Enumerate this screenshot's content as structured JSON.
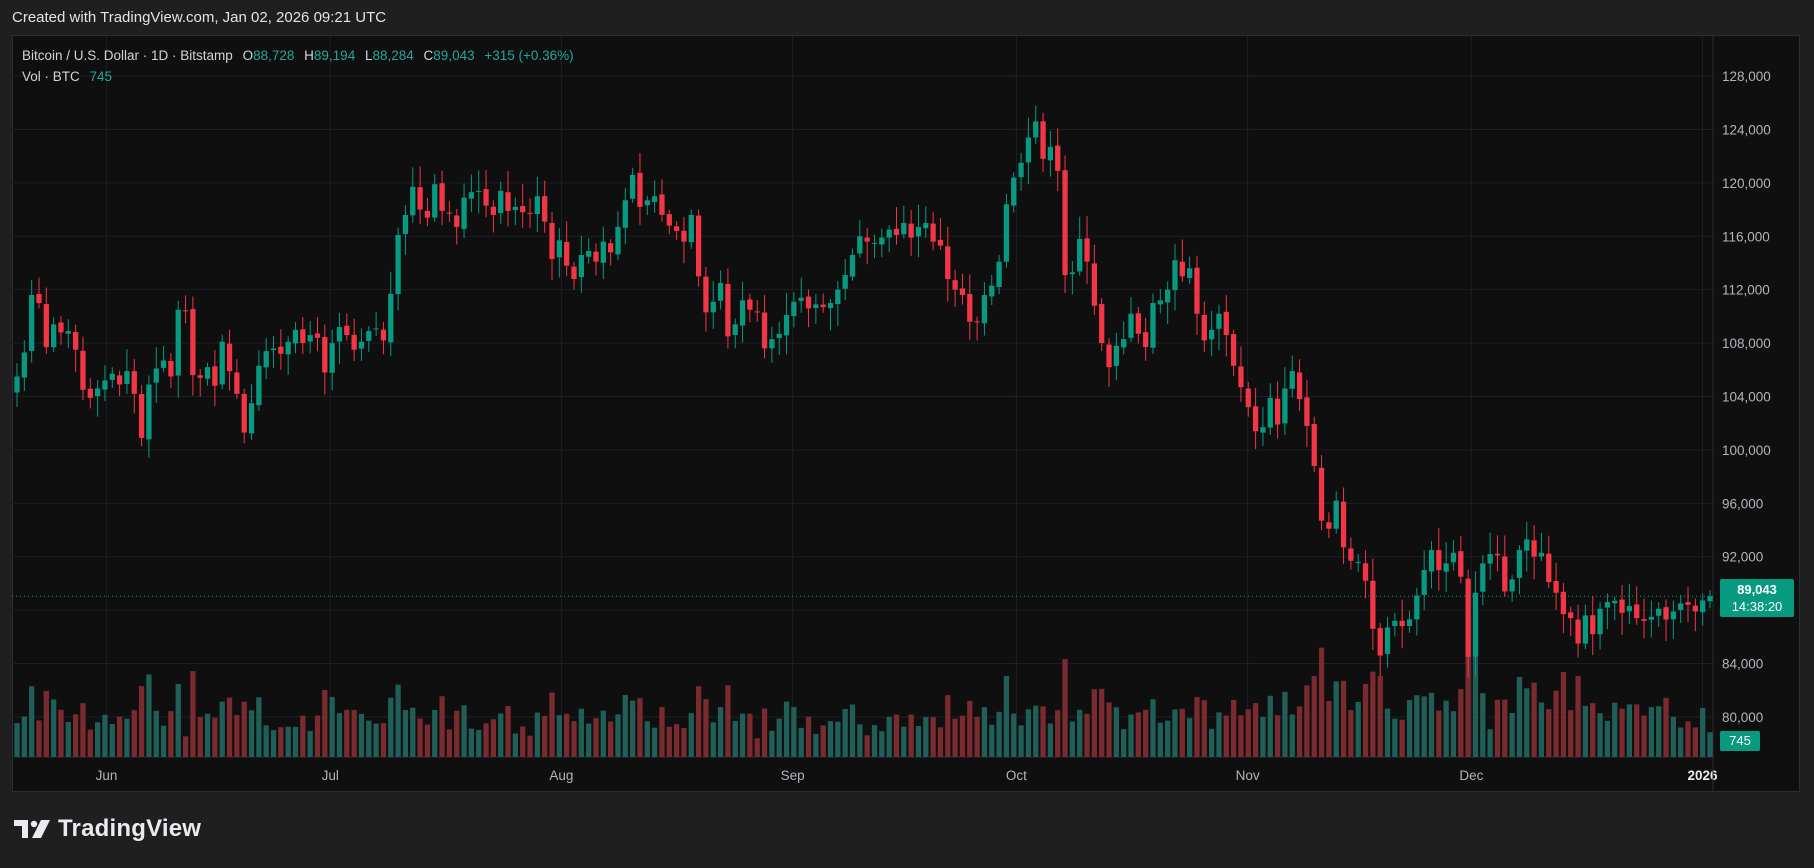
{
  "header": {
    "created_text": "Created with TradingView.com, Jan 02, 2026 09:21 UTC"
  },
  "legend": {
    "symbol": "Bitcoin / U.S. Dollar · 1D · Bitstamp",
    "o_label": "O",
    "o_value": "88,728",
    "h_label": "H",
    "h_value": "89,194",
    "l_label": "L",
    "l_value": "88,284",
    "c_label": "C",
    "c_value": "89,043",
    "change": "+315 (+0.36%)",
    "vol_label": "Vol · BTC",
    "vol_value": "745"
  },
  "price_tag": {
    "price": "89,043",
    "countdown": "14:38:20"
  },
  "vol_tag": {
    "value": "745"
  },
  "footer": {
    "brand": "TradingView"
  },
  "colors": {
    "up": "#089981",
    "down": "#f23645",
    "up_vol": "#1f5f58",
    "down_vol": "#7a2b2f"
  },
  "chart_data": {
    "type": "candlestick",
    "y_ticks": [
      "128,000",
      "124,000",
      "120,000",
      "116,000",
      "112,000",
      "108,000",
      "104,000",
      "100,000",
      "96,000",
      "92,000",
      "88,000",
      "84,000",
      "80,000"
    ],
    "y_tick_values": [
      128000,
      124000,
      120000,
      116000,
      112000,
      108000,
      104000,
      100000,
      96000,
      92000,
      88000,
      84000,
      80000
    ],
    "x_ticks": [
      "Jun",
      "Jul",
      "Aug",
      "Sep",
      "Oct",
      "Nov",
      "Dec",
      "2026"
    ],
    "x_tick_dates": [
      "2025-06-01",
      "2025-07-01",
      "2025-08-01",
      "2025-09-01",
      "2025-10-01",
      "2025-11-01",
      "2025-12-01",
      "2026-01-01"
    ],
    "ylim": [
      77000,
      131000
    ],
    "start_date": "2025-05-20",
    "end_date": "2026-01-02",
    "last_close": 89043,
    "closes": [
      105500,
      107300,
      111600,
      111000,
      107700,
      109400,
      108800,
      108900,
      107500,
      104500,
      103900,
      104600,
      105200,
      105700,
      104900,
      105900,
      104200,
      100900,
      104900,
      106100,
      106700,
      105500,
      110500,
      110400,
      105600,
      105400,
      106200,
      104800,
      108100,
      105900,
      104200,
      101300,
      103500,
      106300,
      107400,
      107600,
      107200,
      108100,
      109000,
      108000,
      108600,
      108400,
      105800,
      108000,
      109200,
      108600,
      107500,
      108100,
      108900,
      109100,
      108200,
      111700,
      116100,
      117600,
      119700,
      118000,
      117400,
      119900,
      117900,
      117700,
      116700,
      118900,
      119300,
      119400,
      118300,
      117600,
      119400,
      117900,
      118200,
      117800,
      117700,
      119000,
      117100,
      114300,
      115700,
      113800,
      112800,
      114600,
      114900,
      114100,
      115600,
      114800,
      116700,
      118700,
      120600,
      118200,
      118700,
      119000,
      117600,
      116800,
      116400,
      115600,
      117600,
      113000,
      110300,
      111100,
      112500,
      108500,
      109400,
      111200,
      110500,
      110300,
      107600,
      108300,
      108700,
      110100,
      111100,
      111400,
      110600,
      110900,
      110700,
      111000,
      112000,
      113100,
      114600,
      116000,
      115600,
      115500,
      115900,
      116500,
      116100,
      117000,
      115900,
      116700,
      117000,
      115600,
      115300,
      112800,
      112000,
      111600,
      109600,
      109600,
      111600,
      112300,
      114100,
      118400,
      120400,
      121500,
      123400,
      124600,
      121800,
      122700,
      120900,
      113100,
      113300,
      115800,
      114100,
      110800,
      108000,
      106200,
      107800,
      108300,
      110200,
      108700,
      107700,
      111000,
      111200,
      112000,
      114200,
      113000,
      113600,
      110200,
      108200,
      109000,
      110200,
      108600,
      106300,
      104700,
      103200,
      101400,
      101700,
      103900,
      101900,
      104600,
      105900,
      103800,
      101800,
      98800,
      94700,
      94100,
      96200,
      92700,
      91700,
      91600,
      90200,
      86600,
      84600,
      86700,
      87200,
      86800,
      87300,
      89100,
      91000,
      92500,
      91000,
      91500,
      92300,
      90500,
      84500,
      89300,
      91500,
      92200,
      92100,
      89400,
      90300,
      92500,
      93300,
      92000,
      92300,
      90100,
      89300,
      87700,
      87400,
      85500,
      87600,
      86200,
      88100,
      88600,
      88700,
      87800,
      88300,
      87400,
      87200,
      87500,
      88100,
      87300,
      87900,
      88500,
      88400,
      87900,
      88728,
      89043
    ]
  }
}
